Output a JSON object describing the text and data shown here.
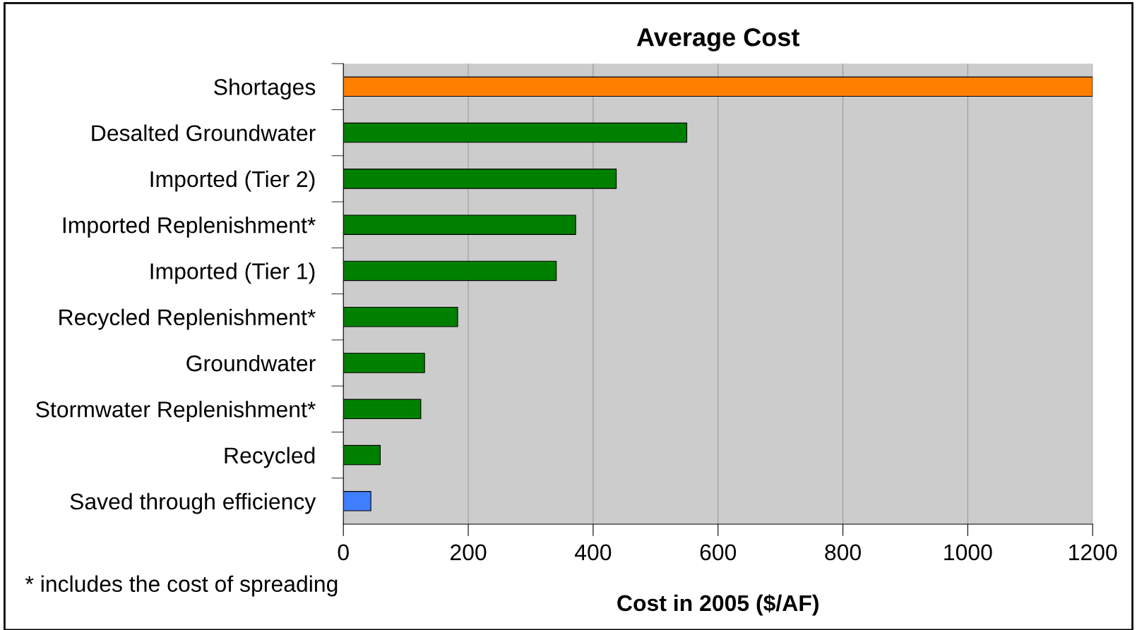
{
  "chart_data": {
    "type": "bar",
    "orientation": "horizontal",
    "title": "Average Cost",
    "xlabel": "Cost in 2005 ($/AF)",
    "categories": [
      "Shortages",
      "Desalted Groundwater",
      "Imported (Tier 2)",
      "Imported Replenishment*",
      "Imported (Tier 1)",
      "Recycled Replenishment*",
      "Groundwater",
      "Stormwater Replenishment*",
      "Recycled",
      "Saved through efficiency"
    ],
    "values": [
      1200,
      550,
      437,
      372,
      341,
      183,
      130,
      124,
      59,
      44
    ],
    "colors": [
      "#ff8000",
      "#008000",
      "#008000",
      "#008000",
      "#008000",
      "#008000",
      "#008000",
      "#008000",
      "#008000",
      "#3f7fff"
    ],
    "xlim": [
      0,
      1200
    ],
    "xticks": [
      0,
      200,
      400,
      600,
      800,
      1000,
      1200
    ],
    "grid": "x",
    "annotations": [
      "* includes the cost of spreading"
    ]
  }
}
